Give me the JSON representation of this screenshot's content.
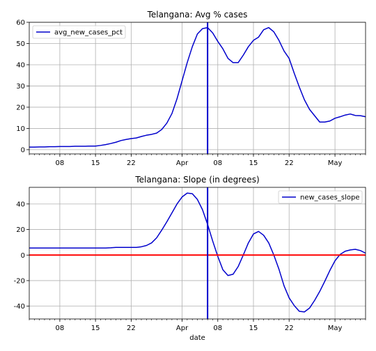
{
  "chart_data": [
    {
      "type": "line",
      "title": "Telangana: Avg % cases",
      "xlabel": "",
      "ylabel": "",
      "xlim": [
        0,
        66
      ],
      "ylim": [
        -2,
        60
      ],
      "yticks": [
        0,
        10,
        20,
        30,
        40,
        50,
        60
      ],
      "xticks": [
        {
          "pos": 6,
          "label": "08"
        },
        {
          "pos": 13,
          "label": "15"
        },
        {
          "pos": 20,
          "label": "22"
        },
        {
          "pos": 30,
          "label": "Apr"
        },
        {
          "pos": 37,
          "label": "08"
        },
        {
          "pos": 44,
          "label": "15"
        },
        {
          "pos": 51,
          "label": "22"
        },
        {
          "pos": 60,
          "label": "May"
        }
      ],
      "grid": true,
      "legend_placement": "top-left",
      "vline": {
        "x": 35,
        "color": "#0000cc"
      },
      "series": [
        {
          "name": "avg_new_cases_pct",
          "color": "#0000cc",
          "x": [
            0,
            1,
            2,
            3,
            4,
            5,
            6,
            7,
            8,
            9,
            10,
            11,
            12,
            13,
            14,
            15,
            16,
            17,
            18,
            19,
            20,
            21,
            22,
            23,
            24,
            25,
            26,
            27,
            28,
            29,
            30,
            31,
            32,
            33,
            34,
            35,
            36,
            37,
            38,
            39,
            40,
            41,
            42,
            43,
            44,
            45,
            46,
            47,
            48,
            49,
            50,
            51,
            52,
            53,
            54,
            55,
            56,
            57,
            58,
            59,
            60,
            61,
            62,
            63,
            64,
            65,
            66
          ],
          "values": [
            1.2,
            1.2,
            1.3,
            1.3,
            1.4,
            1.4,
            1.5,
            1.5,
            1.5,
            1.6,
            1.6,
            1.6,
            1.7,
            1.7,
            2.0,
            2.4,
            2.9,
            3.5,
            4.3,
            4.8,
            5.2,
            5.5,
            6.2,
            6.8,
            7.2,
            7.8,
            9.5,
            12.5,
            17.0,
            24.0,
            32.5,
            41.0,
            48.5,
            54.5,
            57.0,
            57.5,
            55.0,
            51.0,
            47.5,
            43.0,
            41.0,
            41.0,
            44.5,
            48.5,
            51.5,
            53.0,
            56.5,
            57.5,
            55.5,
            51.5,
            46.5,
            43.0,
            36.0,
            29.5,
            23.5,
            19.0,
            16.0,
            13.0,
            13.0,
            13.5,
            14.8,
            15.5,
            16.3,
            16.8,
            16.1,
            16.0,
            15.5
          ]
        }
      ]
    },
    {
      "type": "line",
      "title": "Telangana: Slope (in degrees)",
      "xlabel": "date",
      "ylabel": "",
      "xlim": [
        0,
        66
      ],
      "ylim": [
        -50,
        53
      ],
      "yticks": [
        -40,
        -20,
        0,
        20,
        40
      ],
      "xticks": [
        {
          "pos": 6,
          "label": "08"
        },
        {
          "pos": 13,
          "label": "15"
        },
        {
          "pos": 20,
          "label": "22"
        },
        {
          "pos": 30,
          "label": "Apr"
        },
        {
          "pos": 37,
          "label": "08"
        },
        {
          "pos": 44,
          "label": "15"
        },
        {
          "pos": 51,
          "label": "22"
        },
        {
          "pos": 60,
          "label": "May"
        }
      ],
      "grid": true,
      "legend_placement": "top-right",
      "vline": {
        "x": 35,
        "color": "#0000cc"
      },
      "hline": {
        "y": 0,
        "color": "#ff0000"
      },
      "series": [
        {
          "name": "new_cases_slope",
          "color": "#0000cc",
          "x": [
            0,
            1,
            2,
            3,
            4,
            5,
            6,
            7,
            8,
            9,
            10,
            11,
            12,
            13,
            14,
            15,
            16,
            17,
            18,
            19,
            20,
            21,
            22,
            23,
            24,
            25,
            26,
            27,
            28,
            29,
            30,
            31,
            32,
            33,
            34,
            35,
            36,
            37,
            38,
            39,
            40,
            41,
            42,
            43,
            44,
            45,
            46,
            47,
            48,
            49,
            50,
            51,
            52,
            53,
            54,
            55,
            56,
            57,
            58,
            59,
            60,
            61,
            62,
            63,
            64,
            65,
            66
          ],
          "values": [
            5.5,
            5.5,
            5.5,
            5.5,
            5.5,
            5.5,
            5.5,
            5.5,
            5.5,
            5.5,
            5.5,
            5.5,
            5.5,
            5.5,
            5.5,
            5.5,
            5.7,
            6.0,
            6.0,
            6.0,
            6.0,
            6.0,
            6.5,
            7.5,
            9.5,
            13.5,
            19.5,
            26.0,
            33.0,
            40.0,
            45.5,
            48.5,
            48.0,
            43.5,
            35.5,
            24.0,
            11.0,
            -1.0,
            -11.5,
            -16.0,
            -15.0,
            -9.0,
            0.0,
            9.5,
            16.5,
            18.5,
            15.5,
            9.5,
            0.0,
            -11.0,
            -24.0,
            -33.5,
            -39.5,
            -44.0,
            -44.5,
            -41.5,
            -35.5,
            -28.5,
            -20.5,
            -12.0,
            -4.5,
            0.5,
            3.0,
            4.0,
            4.5,
            3.5,
            1.5
          ]
        }
      ]
    }
  ]
}
